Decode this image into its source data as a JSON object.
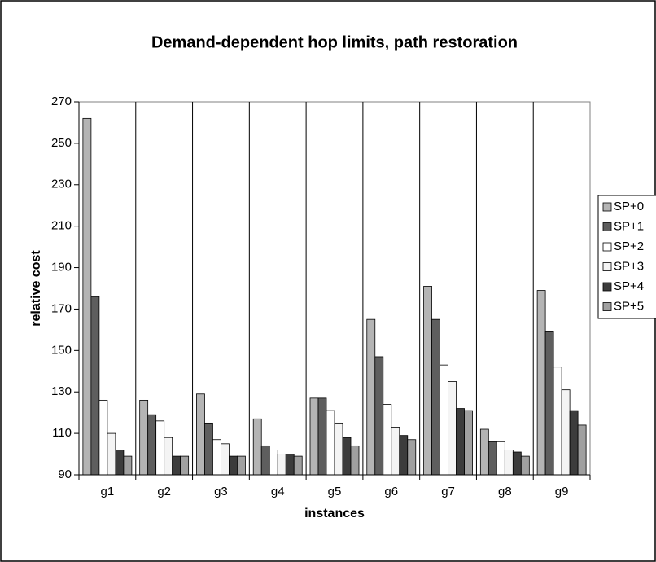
{
  "chart_data": {
    "type": "bar",
    "title": "Demand-dependent hop limits, path restoration",
    "x_label": "instances",
    "y_label": "relative cost",
    "categories": [
      "g1",
      "g2",
      "g3",
      "g4",
      "g5",
      "g6",
      "g7",
      "g8",
      "g9"
    ],
    "series": [
      {
        "name": "SP+0",
        "color": "#b4b4b4",
        "values": [
          262,
          126,
          129,
          117,
          127,
          165,
          181,
          112,
          179
        ]
      },
      {
        "name": "SP+1",
        "color": "#5e5e5e",
        "values": [
          176,
          119,
          115,
          104,
          127,
          147,
          165,
          106,
          159
        ]
      },
      {
        "name": "SP+2",
        "color": "#ffffff",
        "values": [
          126,
          116,
          107,
          102,
          121,
          124,
          143,
          106,
          142
        ]
      },
      {
        "name": "SP+3",
        "color": "#f4f4f4",
        "values": [
          110,
          108,
          105,
          100,
          115,
          113,
          135,
          102,
          131
        ]
      },
      {
        "name": "SP+4",
        "color": "#3c3c3c",
        "values": [
          102,
          99,
          99,
          100,
          108,
          109,
          122,
          101,
          121
        ]
      },
      {
        "name": "SP+5",
        "color": "#a0a0a0",
        "values": [
          99,
          99,
          99,
          99,
          104,
          107,
          121,
          99,
          114
        ]
      }
    ],
    "ylim": [
      90,
      270
    ],
    "yticks": [
      90,
      110,
      130,
      150,
      170,
      190,
      210,
      230,
      250,
      270
    ],
    "grid": true,
    "legend": "right"
  }
}
